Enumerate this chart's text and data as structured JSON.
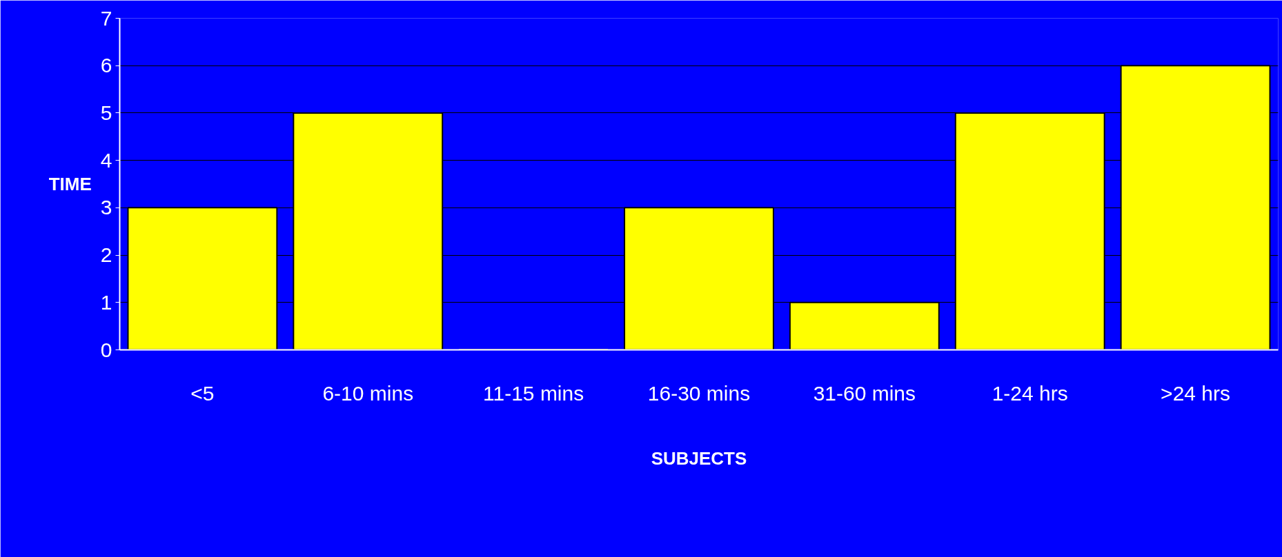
{
  "chart_data": {
    "type": "bar",
    "xlabel": "SUBJECTS",
    "ylabel": "TIME",
    "categories": [
      "<5",
      "6-10 mins",
      "11-15 mins",
      "16-30 mins",
      "31-60 mins",
      "1-24 hrs",
      ">24 hrs"
    ],
    "values": [
      3,
      5,
      0,
      3,
      1,
      5,
      6
    ],
    "color": "#ffff00",
    "ylim": [
      0,
      7
    ],
    "yticks": [
      0,
      1,
      2,
      3,
      4,
      5,
      6,
      7
    ],
    "grid": "y"
  }
}
